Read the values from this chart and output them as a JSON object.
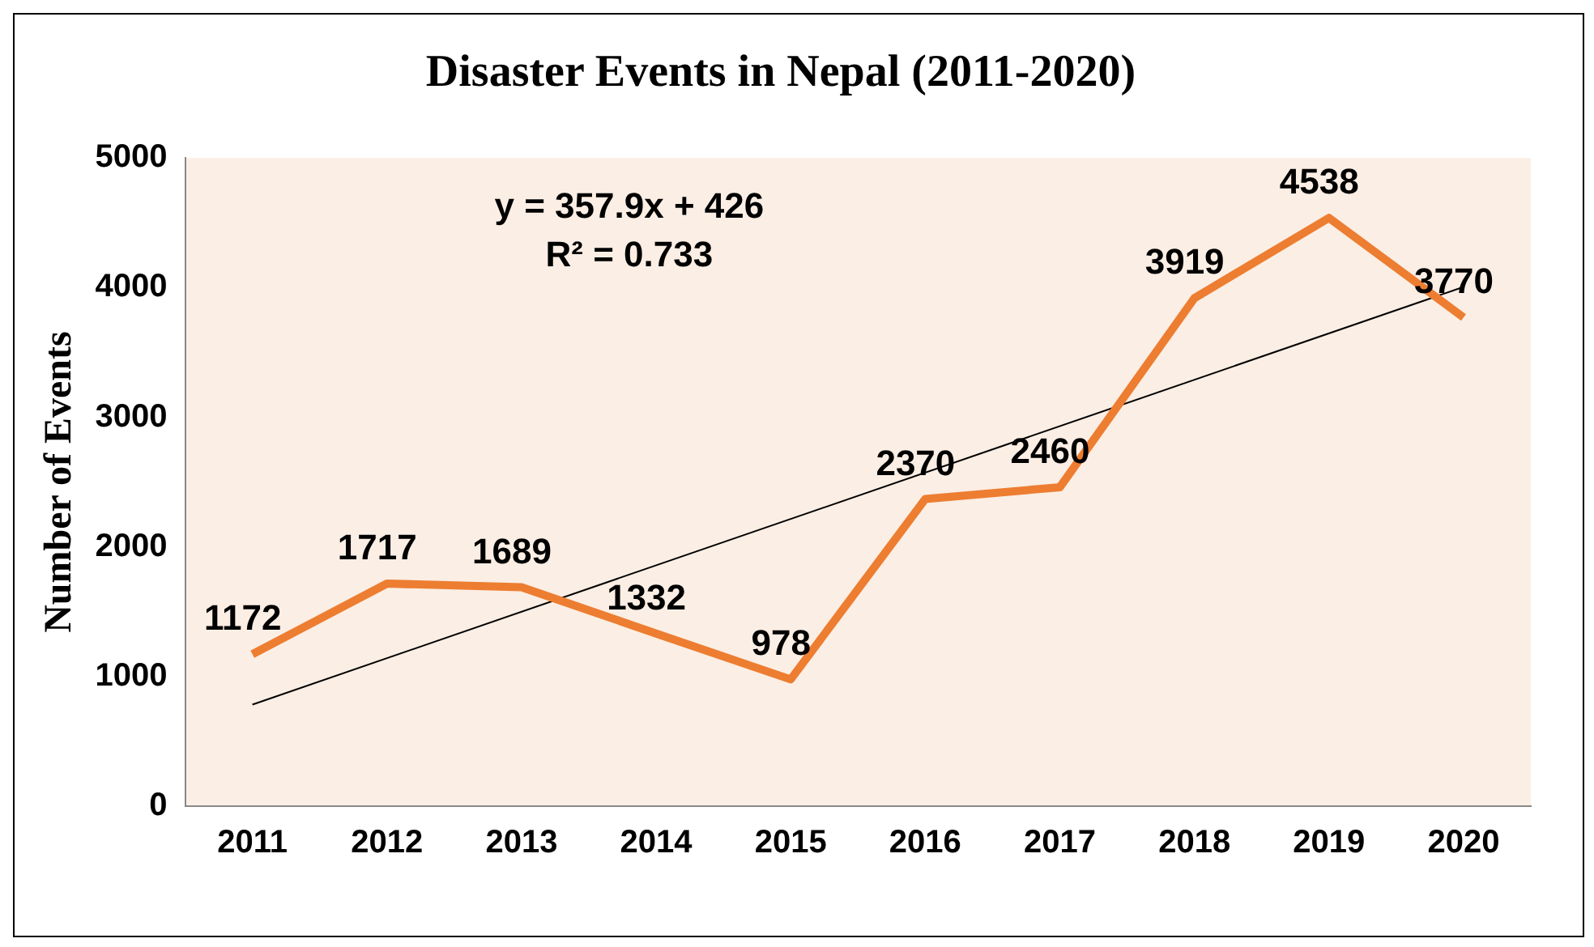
{
  "chart_data": {
    "type": "line",
    "title": "Disaster Events in Nepal (2011-2020)",
    "ylabel": "Number of Events",
    "categories": [
      "2011",
      "2012",
      "2013",
      "2014",
      "2015",
      "2016",
      "2017",
      "2018",
      "2019",
      "2020"
    ],
    "series": [
      {
        "color": "#ed7d31",
        "values": [
          1172,
          1717,
          1689,
          1332,
          978,
          2370,
          2460,
          3919,
          4538,
          3770
        ],
        "value_labels": [
          "1172",
          "1717",
          "1689",
          "1332",
          "978",
          "2370",
          "2460",
          "3919",
          "4538",
          "3770"
        ]
      },
      {
        "type": "line",
        "color": "#000000",
        "values": [
          784,
          null,
          null,
          null,
          null,
          null,
          null,
          null,
          null,
          4005
        ]
      }
    ],
    "annotations": [
      "y = 357.9x + 426",
      "R² = 0.733"
    ],
    "ylim": [
      0,
      5000
    ],
    "yticks": [
      0,
      1000,
      2000,
      3000,
      4000,
      5000
    ],
    "grid": false,
    "legend": false,
    "marker": "none"
  }
}
